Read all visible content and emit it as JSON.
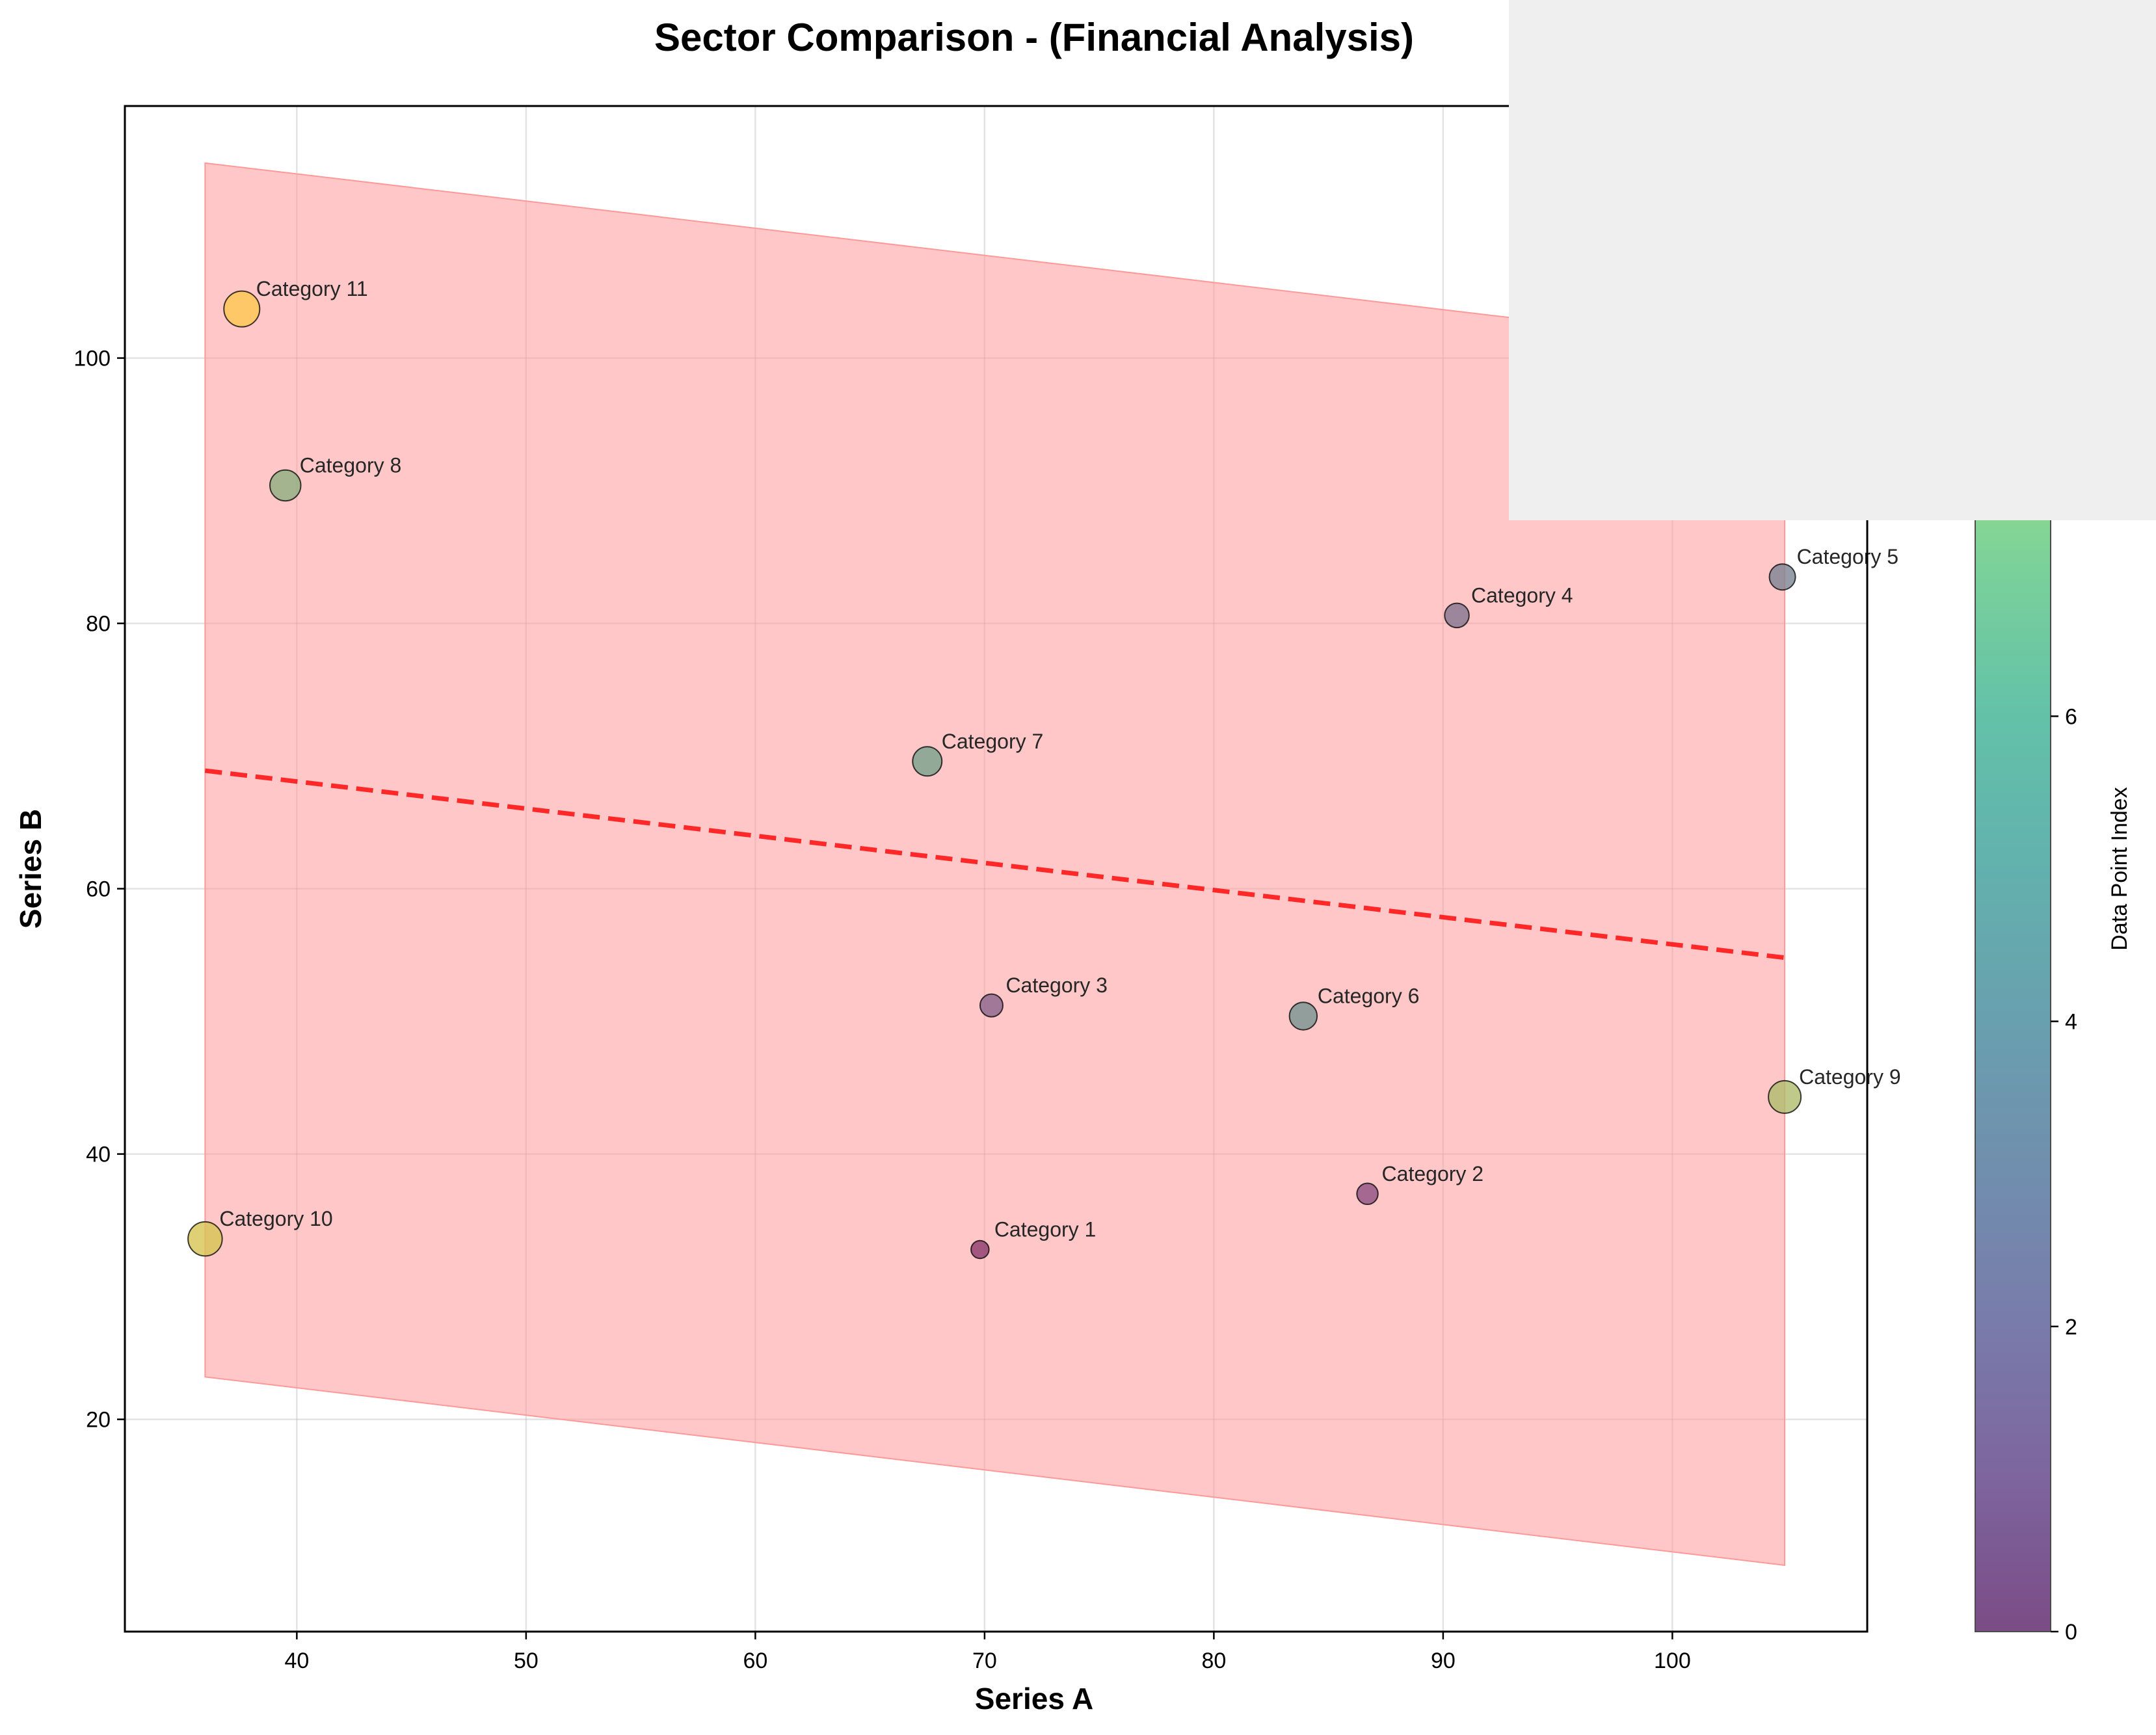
{
  "chart_data": {
    "type": "scatter",
    "title": "Sector Comparison - (Financial Analysis)",
    "xlabel": "Series A",
    "ylabel": "Series B",
    "xlim": [
      32.5,
      108.5
    ],
    "ylim": [
      4,
      119
    ],
    "x_ticks": [
      40,
      50,
      60,
      70,
      80,
      90,
      100
    ],
    "y_ticks": [
      20,
      40,
      60,
      80,
      100
    ],
    "grid": true,
    "points": [
      {
        "label": "Category 1",
        "x": 69.8,
        "y": 32.8,
        "size": 11,
        "index": 0
      },
      {
        "label": "Category 2",
        "x": 86.7,
        "y": 37.0,
        "size": 13,
        "index": 1
      },
      {
        "label": "Category 3",
        "x": 70.3,
        "y": 51.2,
        "size": 14,
        "index": 2
      },
      {
        "label": "Category 4",
        "x": 90.6,
        "y": 80.6,
        "size": 15,
        "index": 3
      },
      {
        "label": "Category 5",
        "x": 104.8,
        "y": 83.5,
        "size": 16,
        "index": 4
      },
      {
        "label": "Category 6",
        "x": 83.9,
        "y": 50.4,
        "size": 17,
        "index": 5
      },
      {
        "label": "Category 7",
        "x": 67.5,
        "y": 69.6,
        "size": 18,
        "index": 6
      },
      {
        "label": "Category 8",
        "x": 39.5,
        "y": 90.4,
        "size": 19,
        "index": 7
      },
      {
        "label": "Category 9",
        "x": 104.9,
        "y": 44.3,
        "size": 20,
        "index": 8
      },
      {
        "label": "Category 10",
        "x": 36.0,
        "y": 33.6,
        "size": 21,
        "index": 9
      },
      {
        "label": "Category 11",
        "x": 37.6,
        "y": 103.7,
        "size": 22,
        "index": 10
      }
    ],
    "trend_line": {
      "x": [
        36.0,
        104.9
      ],
      "y": [
        68.9,
        54.8
      ],
      "color": "#ff0000",
      "style": "dashed"
    },
    "confidence_band": {
      "x": [
        36.0,
        104.9
      ],
      "upper": [
        114.7,
        100.6
      ],
      "lower": [
        23.2,
        9.0
      ],
      "color": "#ff9999"
    },
    "point_overlay_color": "#ff9999",
    "colorbar": {
      "label": "Data Point Index",
      "ticks": [
        0,
        2,
        4,
        6
      ],
      "min": 0,
      "max": 10,
      "colormap": "viridis"
    }
  }
}
